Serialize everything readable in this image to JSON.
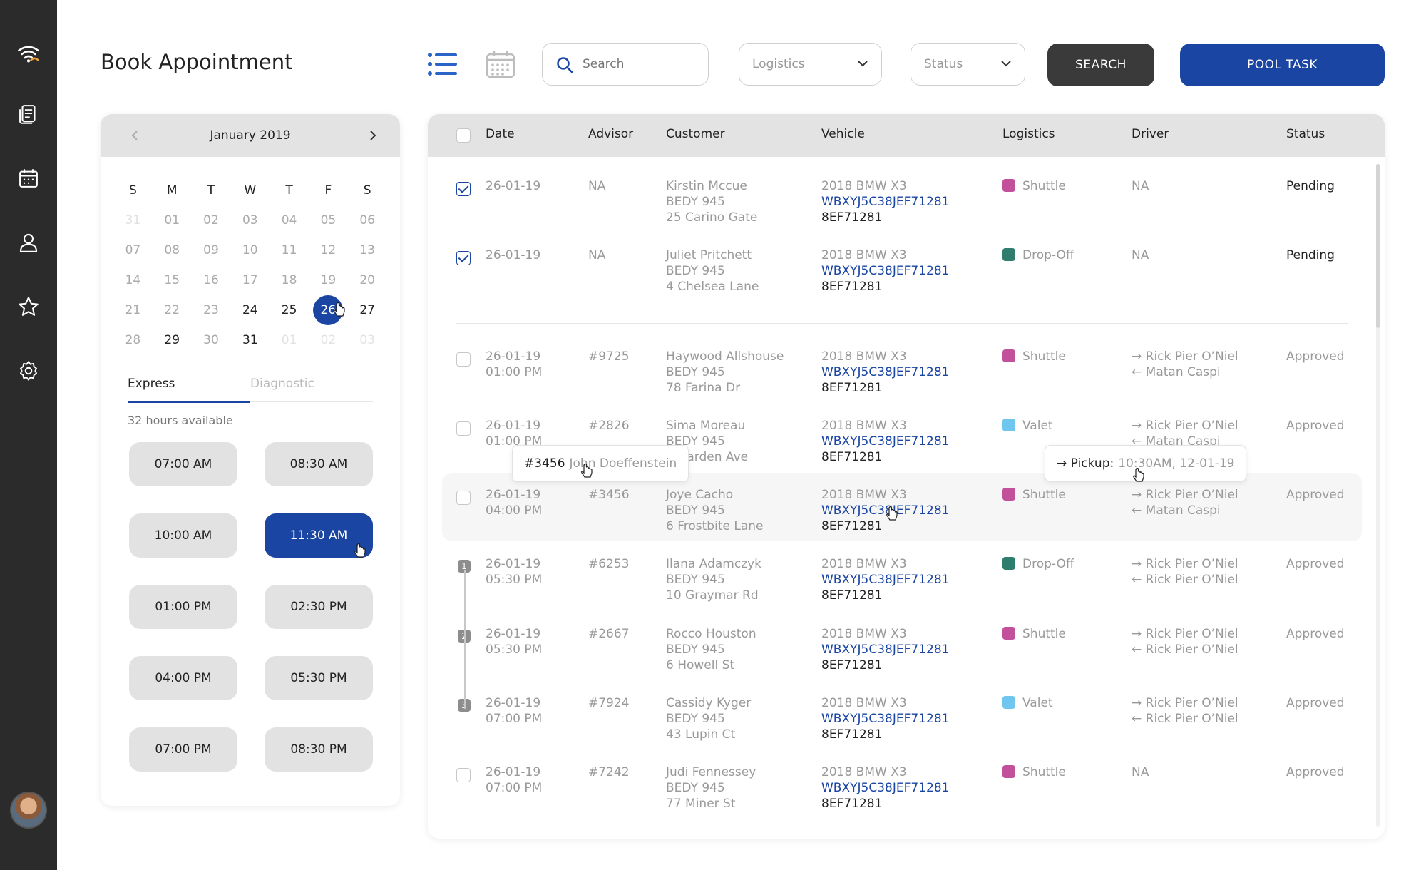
{
  "app": {
    "title": "Book Appointment"
  },
  "sidebar": {
    "icons": [
      "wifi-logo-icon",
      "documents-icon",
      "calendar-icon",
      "user-icon",
      "star-icon",
      "settings-icon"
    ],
    "avatar_icon": "user-avatar"
  },
  "toolbar": {
    "search_placeholder": "Search",
    "logistics_selected": "Logistics",
    "status_selected": "Status",
    "search_label": "SEARCH",
    "pool_label": "POOL TASK"
  },
  "calendar": {
    "month_label": "January 2019",
    "weekdays": [
      "S",
      "M",
      "T",
      "W",
      "T",
      "F",
      "S"
    ],
    "weeks": [
      [
        {
          "d": "31",
          "s": "faint"
        },
        {
          "d": "01",
          "s": "muted"
        },
        {
          "d": "02",
          "s": "muted"
        },
        {
          "d": "03",
          "s": "muted"
        },
        {
          "d": "04",
          "s": "muted"
        },
        {
          "d": "05",
          "s": "muted"
        },
        {
          "d": "06",
          "s": "muted"
        }
      ],
      [
        {
          "d": "07",
          "s": "muted"
        },
        {
          "d": "08",
          "s": "muted"
        },
        {
          "d": "09",
          "s": "muted"
        },
        {
          "d": "10",
          "s": "muted"
        },
        {
          "d": "11",
          "s": "muted"
        },
        {
          "d": "12",
          "s": "muted"
        },
        {
          "d": "13",
          "s": "muted"
        }
      ],
      [
        {
          "d": "14",
          "s": "muted"
        },
        {
          "d": "15",
          "s": "muted"
        },
        {
          "d": "16",
          "s": "muted"
        },
        {
          "d": "17",
          "s": "muted"
        },
        {
          "d": "18",
          "s": "muted"
        },
        {
          "d": "19",
          "s": "muted"
        },
        {
          "d": "20",
          "s": "muted"
        }
      ],
      [
        {
          "d": "21",
          "s": "muted"
        },
        {
          "d": "22",
          "s": "muted"
        },
        {
          "d": "23",
          "s": "muted"
        },
        {
          "d": "24",
          "s": "normal"
        },
        {
          "d": "25",
          "s": "normal"
        },
        {
          "d": "26",
          "s": "selected"
        },
        {
          "d": "27",
          "s": "normal"
        }
      ],
      [
        {
          "d": "28",
          "s": "muted"
        },
        {
          "d": "29",
          "s": "normal"
        },
        {
          "d": "30",
          "s": "muted"
        },
        {
          "d": "31",
          "s": "normal"
        },
        {
          "d": "01",
          "s": "faint"
        },
        {
          "d": "02",
          "s": "faint"
        },
        {
          "d": "03",
          "s": "faint"
        }
      ]
    ],
    "tabs": {
      "express": "Express",
      "diagnostic": "Diagnostic"
    },
    "hours_available": "32 hours available",
    "slots": [
      "07:00 AM",
      "08:30 AM",
      "10:00 AM",
      "11:30 AM",
      "01:00 PM",
      "02:30 PM",
      "04:00 PM",
      "05:30 PM",
      "07:00 PM",
      "08:30 PM"
    ],
    "selected_slot": "11:30 AM"
  },
  "table": {
    "headers": {
      "date": "Date",
      "advisor": "Advisor",
      "customer": "Customer",
      "vehicle": "Vehicle",
      "logistics": "Logistics",
      "driver": "Driver",
      "status": "Status"
    },
    "rows": [
      {
        "date": "26-01-19",
        "time": "",
        "advisor": "NA",
        "name": "Kirstin Mccue",
        "plate": "BEDY 945",
        "address": "25 Carino Gate",
        "vehicle": "2018 BMW X3",
        "vin": "WBXYJ5C38JEF71281",
        "vplate": "8EF71281",
        "logistics": "Shuttle",
        "color": "#c2509b",
        "drv1": "NA",
        "drv2": "",
        "status": "Pending",
        "checked": true,
        "badge": ""
      },
      {
        "date": "26-01-19",
        "time": "",
        "advisor": "NA",
        "name": "Juliet Pritchett",
        "plate": "BEDY 945",
        "address": "4 Chelsea Lane",
        "vehicle": "2018 BMW X3",
        "vin": "WBXYJ5C38JEF71281",
        "vplate": "8EF71281",
        "logistics": "Drop-Off",
        "color": "#2f7d6d",
        "drv1": "NA",
        "drv2": "",
        "status": "Pending",
        "checked": true,
        "badge": ""
      },
      {
        "date": "26-01-19",
        "time": "01:00 PM",
        "advisor": "#9725",
        "name": "Haywood Allshouse",
        "plate": "BEDY 945",
        "address": "78 Farina Dr",
        "vehicle": "2018 BMW X3",
        "vin": "WBXYJ5C38JEF71281",
        "vplate": "8EF71281",
        "logistics": "Shuttle",
        "color": "#c2509b",
        "drv1": "→ Rick Pier O’Niel",
        "drv2": "← Matan Caspi",
        "status": "Approved",
        "checked": false,
        "badge": ""
      },
      {
        "date": "26-01-19",
        "time": "01:00 PM",
        "advisor": "#2826",
        "name": "Sima Moreau",
        "plate": "BEDY 945",
        "address": "7 Garden Ave",
        "vehicle": "2018 BMW X3",
        "vin": "WBXYJ5C38JEF71281",
        "vplate": "8EF71281",
        "logistics": "Valet",
        "color": "#6fc6ee",
        "drv1": "→ Rick Pier O’Niel",
        "drv2": "← Matan Caspi",
        "status": "Approved",
        "checked": false,
        "badge": ""
      },
      {
        "date": "26-01-19",
        "time": "04:00 PM",
        "advisor": "#3456",
        "name": "Joye Cacho",
        "plate": "BEDY 945",
        "address": "6 Frostbite Lane",
        "vehicle": "2018 BMW X3",
        "vin": "WBXYJ5C38JEF71281",
        "vplate": "8EF71281",
        "logistics": "Shuttle",
        "color": "#c2509b",
        "drv1": "→ Rick Pier O’Niel",
        "drv2": "← Matan Caspi",
        "status": "Approved",
        "checked": false,
        "badge": ""
      },
      {
        "date": "26-01-19",
        "time": "05:30 PM",
        "advisor": "#6253",
        "name": "Ilana Adamczyk",
        "plate": "BEDY 945",
        "address": "10 Graymar Rd",
        "vehicle": "2018 BMW X3",
        "vin": "WBXYJ5C38JEF71281",
        "vplate": "8EF71281",
        "logistics": "Drop-Off",
        "color": "#2f7d6d",
        "drv1": "→ Rick Pier O’Niel",
        "drv2": "← Rick Pier O’Niel",
        "status": "Approved",
        "checked": false,
        "badge": "1"
      },
      {
        "date": "26-01-19",
        "time": "05:30 PM",
        "advisor": "#2667",
        "name": "Rocco Houston",
        "plate": "BEDY 945",
        "address": "6 Howell St",
        "vehicle": "2018 BMW X3",
        "vin": "WBXYJ5C38JEF71281",
        "vplate": "8EF71281",
        "logistics": "Shuttle",
        "color": "#c2509b",
        "drv1": "→ Rick Pier O’Niel",
        "drv2": "← Rick Pier O’Niel",
        "status": "Approved",
        "checked": false,
        "badge": "2"
      },
      {
        "date": "26-01-19",
        "time": "07:00 PM",
        "advisor": "#7924",
        "name": "Cassidy Kyger",
        "plate": "BEDY 945",
        "address": "43 Lupin Ct",
        "vehicle": "2018 BMW X3",
        "vin": "WBXYJ5C38JEF71281",
        "vplate": "8EF71281",
        "logistics": "Valet",
        "color": "#6fc6ee",
        "drv1": "→ Rick Pier O’Niel",
        "drv2": "← Rick Pier O’Niel",
        "status": "Approved",
        "checked": false,
        "badge": "3"
      },
      {
        "date": "26-01-19",
        "time": "07:00 PM",
        "advisor": "#7242",
        "name": "Judi Fennessey",
        "plate": "BEDY 945",
        "address": "77 Miner St",
        "vehicle": "2018 BMW X3",
        "vin": "WBXYJ5C38JEF71281",
        "vplate": "8EF71281",
        "logistics": "Shuttle",
        "color": "#c2509b",
        "drv1": "NA",
        "drv2": "",
        "status": "Approved",
        "checked": false,
        "badge": ""
      }
    ]
  },
  "tooltips": {
    "advisor_id": "#3456",
    "advisor_name": "John Doeffenstein",
    "pickup_label": "→ Pickup:",
    "pickup_value": "10:30AM, 12-01-19"
  }
}
